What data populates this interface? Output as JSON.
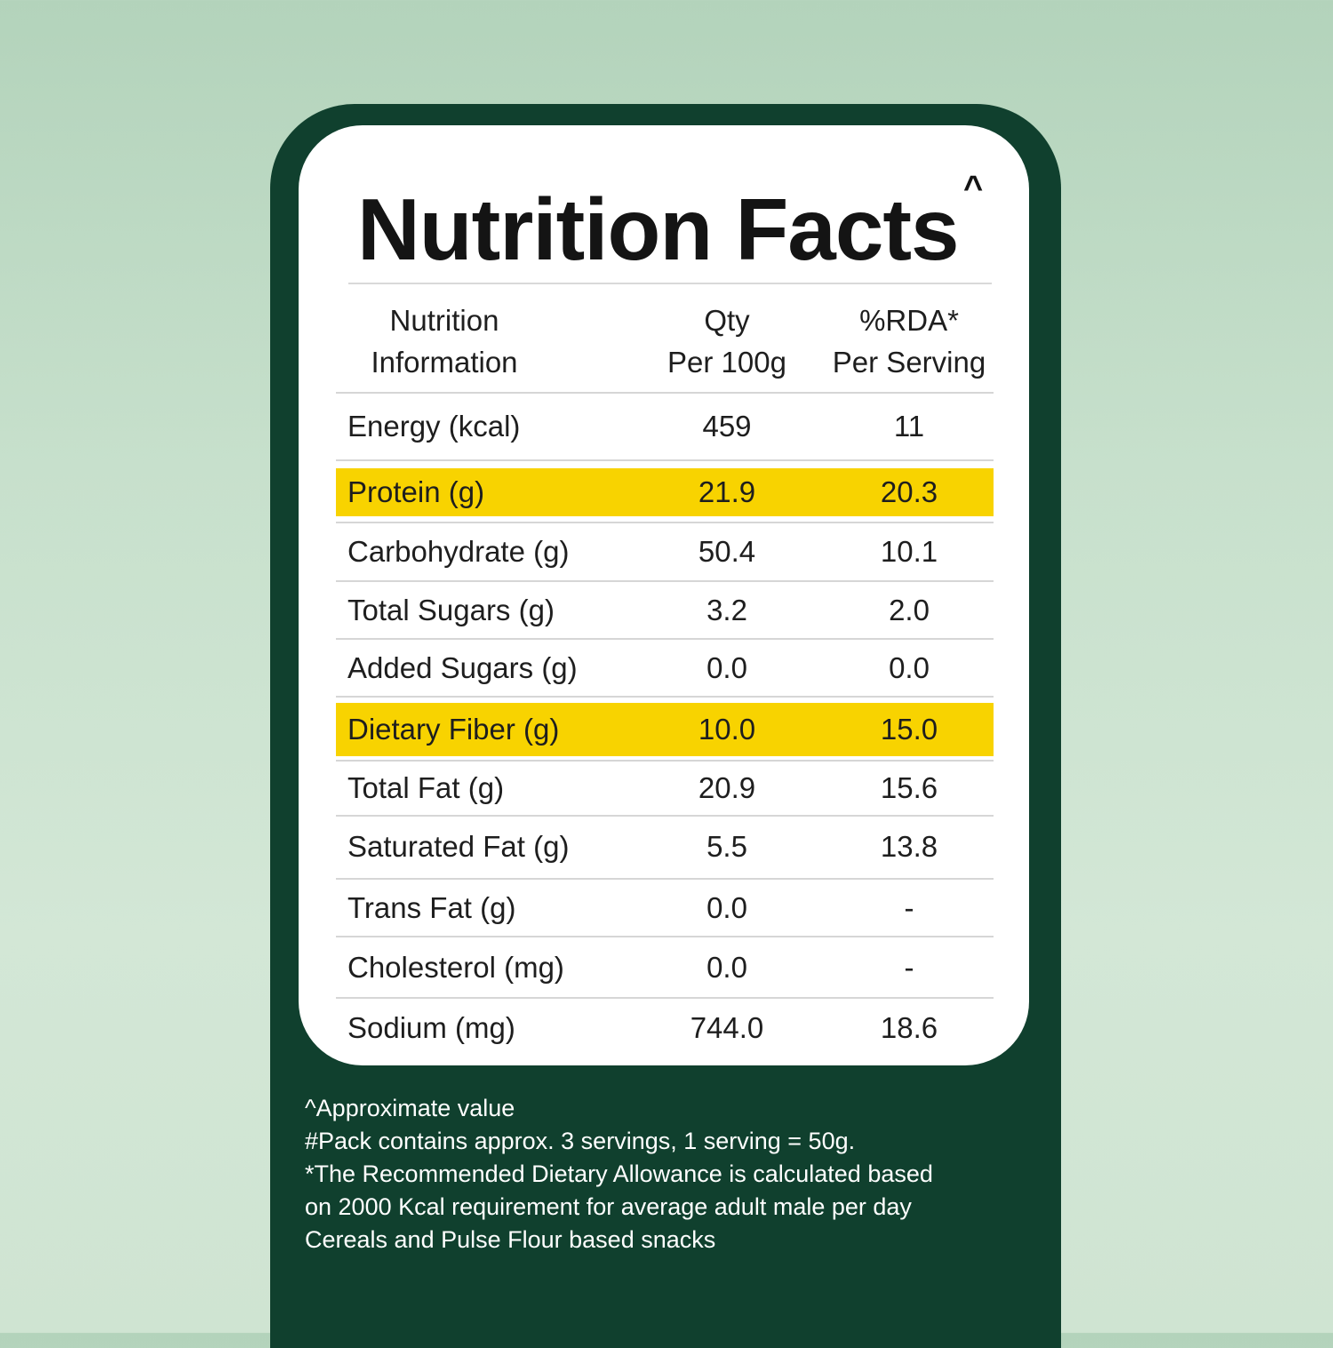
{
  "card": {
    "title": "Nutrition Facts",
    "title_mark": "^",
    "headers": {
      "col1_line1": "Nutrition",
      "col1_line2": "Information",
      "col2_line1": "Qty",
      "col2_line2": "Per 100g",
      "col3_line1": "%RDA*",
      "col3_line2": "Per Serving"
    },
    "rows": [
      {
        "name": "Energy (kcal)",
        "qty": "459",
        "rda": "11"
      },
      {
        "name": "Protein (g)",
        "qty": "21.9",
        "rda": "20.3"
      },
      {
        "name": "Carbohydrate (g)",
        "qty": "50.4",
        "rda": "10.1"
      },
      {
        "name": "Total Sugars (g)",
        "qty": "3.2",
        "rda": "2.0"
      },
      {
        "name": "Added Sugars (g)",
        "qty": "0.0",
        "rda": "0.0"
      },
      {
        "name": "Dietary Fiber (g)",
        "qty": "10.0",
        "rda": "15.0"
      },
      {
        "name": "Total Fat (g)",
        "qty": "20.9",
        "rda": "15.6"
      },
      {
        "name": "Saturated Fat (g)",
        "qty": "5.5",
        "rda": "13.8"
      },
      {
        "name": "Trans Fat (g)",
        "qty": "0.0",
        "rda": "-"
      },
      {
        "name": "Cholesterol (mg)",
        "qty": "0.0",
        "rda": "-"
      },
      {
        "name": "Sodium (mg)",
        "qty": "744.0",
        "rda": "18.6"
      }
    ],
    "highlight_color": "#f8d300"
  },
  "footnotes": {
    "line1": "^Approximate value",
    "line2": "#Pack contains approx. 3 servings, 1 serving = 50g.",
    "line3": "*The Recommended Dietary Allowance is calculated based",
    "line4": "on 2000 Kcal requirement for average adult male per day",
    "line5": "Cereals and Pulse Flour based snacks"
  },
  "colors": {
    "panel": "#10402e",
    "card": "#ffffff",
    "background": "#c7e0cc"
  }
}
